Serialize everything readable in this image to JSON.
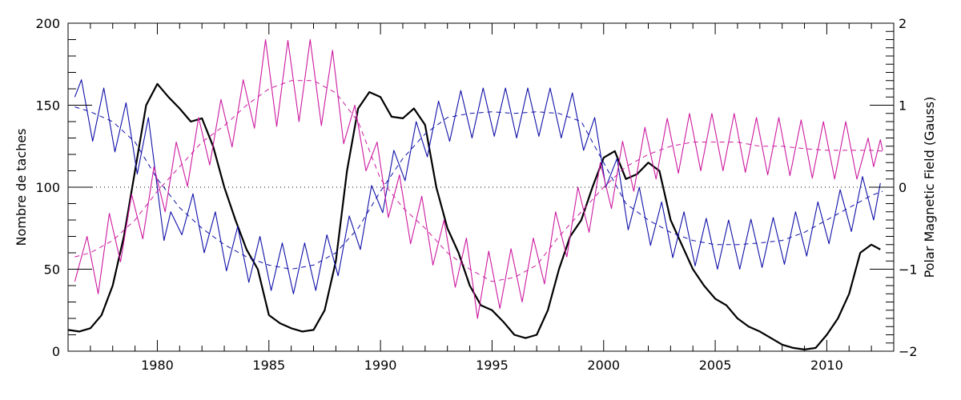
{
  "chart_data": {
    "type": "line",
    "xlabel": "",
    "ylabel_left": "Nombre de taches",
    "ylabel_right": "Polar Magnetic Field (Gauss)",
    "xlim": [
      1976,
      2013
    ],
    "ylim_left": [
      0,
      200
    ],
    "ylim_right": [
      -2,
      2
    ],
    "x_ticks": [
      1980,
      1985,
      1990,
      1995,
      2000,
      2005,
      2010
    ],
    "y_ticks_left": [
      0,
      50,
      100,
      150,
      200
    ],
    "y_ticks_right": [
      -2,
      -1,
      0,
      1,
      2
    ],
    "zero_line": {
      "axis": "right",
      "value": 0,
      "style": "dotted"
    },
    "grid": false,
    "colors": {
      "sunspots": "#000000",
      "field_a": "#1010a8",
      "field_b": "#cc1aa0"
    },
    "series": [
      {
        "axis": "left",
        "style": "solid-thick",
        "color_key": "sunspots",
        "x": [
          1976.0,
          1976.5,
          1977.0,
          1977.5,
          1978.0,
          1978.5,
          1979.0,
          1979.5,
          1980.0,
          1980.5,
          1981.0,
          1981.5,
          1982.0,
          1982.5,
          1983.0,
          1983.5,
          1984.0,
          1984.5,
          1985.0,
          1985.5,
          1986.0,
          1986.5,
          1987.0,
          1987.5,
          1988.0,
          1988.5,
          1989.0,
          1989.5,
          1990.0,
          1990.5,
          1991.0,
          1991.5,
          1992.0,
          1992.5,
          1993.0,
          1993.5,
          1994.0,
          1994.5,
          1995.0,
          1995.5,
          1996.0,
          1996.5,
          1997.0,
          1997.5,
          1998.0,
          1998.5,
          1999.0,
          1999.5,
          2000.0,
          2000.5,
          2001.0,
          2001.5,
          2002.0,
          2002.5,
          2003.0,
          2003.5,
          2004.0,
          2004.5,
          2005.0,
          2005.5,
          2006.0,
          2006.5,
          2007.0,
          2007.5,
          2008.0,
          2008.5,
          2009.0,
          2009.5,
          2010.0,
          2010.5,
          2011.0,
          2011.5,
          2012.0,
          2012.4
        ],
        "y": [
          13,
          12,
          14,
          22,
          40,
          70,
          110,
          150,
          163,
          155,
          148,
          140,
          142,
          125,
          100,
          80,
          62,
          50,
          22,
          17,
          14,
          12,
          13,
          25,
          55,
          110,
          148,
          158,
          155,
          143,
          142,
          148,
          138,
          100,
          75,
          60,
          40,
          28,
          25,
          18,
          10,
          8,
          10,
          25,
          50,
          70,
          80,
          100,
          118,
          122,
          105,
          108,
          115,
          110,
          80,
          65,
          50,
          40,
          32,
          28,
          20,
          15,
          12,
          8,
          4,
          2,
          1,
          2,
          10,
          20,
          35,
          60,
          65,
          62
        ]
      },
      {
        "axis": "right",
        "style": "solid-thin",
        "color_key": "field_a",
        "x": [
          1976.3,
          1976.6,
          1977.1,
          1977.6,
          1978.1,
          1978.6,
          1979.1,
          1979.6,
          1980.3,
          1980.6,
          1981.1,
          1981.6,
          1982.1,
          1982.6,
          1983.1,
          1983.6,
          1984.1,
          1984.6,
          1985.1,
          1985.6,
          1986.1,
          1986.6,
          1987.1,
          1987.6,
          1988.1,
          1988.6,
          1989.1,
          1989.6,
          1990.1,
          1990.6,
          1991.1,
          1991.6,
          1992.1,
          1992.6,
          1993.1,
          1993.6,
          1994.1,
          1994.6,
          1995.1,
          1995.6,
          1996.1,
          1996.6,
          1997.1,
          1997.6,
          1998.1,
          1998.6,
          1999.1,
          1999.6,
          2000.1,
          2000.6,
          2001.1,
          2001.6,
          2002.1,
          2002.6,
          2003.1,
          2003.6,
          2004.1,
          2004.6,
          2005.1,
          2005.6,
          2006.1,
          2006.6,
          2007.1,
          2007.6,
          2008.1,
          2008.6,
          2009.1,
          2009.6,
          2010.1,
          2010.6,
          2011.1,
          2011.6,
          2012.1,
          2012.4
        ],
        "y": [
          1.1,
          1.31,
          0.56,
          1.21,
          0.43,
          1.03,
          0.16,
          0.85,
          -0.65,
          -0.3,
          -0.58,
          -0.08,
          -0.8,
          -0.3,
          -1.02,
          -0.48,
          -1.16,
          -0.6,
          -1.26,
          -0.68,
          -1.3,
          -0.68,
          -1.26,
          -0.58,
          -1.08,
          -0.35,
          -0.76,
          0.02,
          -0.31,
          0.45,
          0.08,
          0.8,
          0.37,
          1.05,
          0.56,
          1.18,
          0.6,
          1.21,
          0.62,
          1.21,
          0.6,
          1.21,
          0.62,
          1.21,
          0.6,
          1.15,
          0.45,
          0.85,
          0.0,
          0.35,
          -0.52,
          0.0,
          -0.71,
          -0.18,
          -0.86,
          -0.3,
          -0.96,
          -0.38,
          -1.0,
          -0.4,
          -1.0,
          -0.39,
          -0.98,
          -0.37,
          -0.94,
          -0.3,
          -0.84,
          -0.18,
          -0.69,
          -0.03,
          -0.54,
          0.13,
          -0.4,
          0.05
        ]
      },
      {
        "axis": "right",
        "style": "dashed",
        "color_key": "field_a",
        "x": [
          1976.3,
          1977,
          1978,
          1979,
          1980,
          1981,
          1982,
          1983,
          1984,
          1985,
          1986,
          1987,
          1988,
          1989,
          1990,
          1991,
          1992,
          1993,
          1994,
          1995,
          1996,
          1997,
          1998,
          1999,
          2000,
          2001,
          2002,
          2003,
          2004,
          2005,
          2006,
          2007,
          2008,
          2009,
          2010,
          2011,
          2012,
          2012.5
        ],
        "y": [
          0.98,
          0.92,
          0.8,
          0.55,
          0.1,
          -0.25,
          -0.5,
          -0.7,
          -0.85,
          -0.95,
          -1.0,
          -0.95,
          -0.8,
          -0.5,
          -0.05,
          0.35,
          0.65,
          0.85,
          0.9,
          0.92,
          0.9,
          0.92,
          0.9,
          0.8,
          0.3,
          -0.2,
          -0.4,
          -0.55,
          -0.65,
          -0.7,
          -0.7,
          -0.68,
          -0.65,
          -0.55,
          -0.4,
          -0.25,
          -0.1,
          -0.05
        ]
      },
      {
        "axis": "right",
        "style": "solid-thin",
        "color_key": "field_b",
        "x": [
          1976.3,
          1976.85,
          1977.35,
          1977.85,
          1978.35,
          1978.85,
          1979.35,
          1979.85,
          1980.35,
          1980.85,
          1981.35,
          1981.85,
          1982.35,
          1982.85,
          1983.35,
          1983.85,
          1984.35,
          1984.85,
          1985.35,
          1985.85,
          1986.35,
          1986.85,
          1987.35,
          1987.85,
          1988.35,
          1988.85,
          1989.35,
          1989.85,
          1990.35,
          1990.85,
          1991.35,
          1991.85,
          1992.35,
          1992.85,
          1993.35,
          1993.85,
          1994.35,
          1994.85,
          1995.35,
          1995.85,
          1996.35,
          1996.85,
          1997.35,
          1997.85,
          1998.35,
          1998.85,
          1999.35,
          1999.85,
          2000.35,
          2000.85,
          2001.35,
          2001.85,
          2002.35,
          2002.85,
          2003.35,
          2003.85,
          2004.35,
          2004.85,
          2005.35,
          2005.85,
          2006.35,
          2006.85,
          2007.35,
          2007.85,
          2008.35,
          2008.85,
          2009.35,
          2009.85,
          2010.35,
          2010.85,
          2011.35,
          2011.85,
          2012.1,
          2012.4,
          2012.5
        ],
        "y": [
          -1.15,
          -0.6,
          -1.3,
          -0.32,
          -0.91,
          -0.09,
          -0.63,
          0.25,
          -0.3,
          0.55,
          0.01,
          0.85,
          0.27,
          1.07,
          0.49,
          1.31,
          0.72,
          1.8,
          0.74,
          1.79,
          0.8,
          1.8,
          0.75,
          1.67,
          0.53,
          1.0,
          0.2,
          0.55,
          -0.37,
          0.15,
          -0.69,
          -0.11,
          -0.95,
          -0.4,
          -1.22,
          -0.62,
          -1.6,
          -0.78,
          -1.48,
          -0.75,
          -1.4,
          -0.62,
          -1.18,
          -0.3,
          -0.85,
          0.0,
          -0.55,
          0.3,
          -0.26,
          0.56,
          -0.05,
          0.73,
          0.1,
          0.84,
          0.17,
          0.9,
          0.2,
          0.9,
          0.2,
          0.9,
          0.18,
          0.85,
          0.15,
          0.85,
          0.14,
          0.82,
          0.11,
          0.8,
          0.1,
          0.8,
          0.1,
          0.6,
          0.25,
          0.58,
          0.45
        ]
      },
      {
        "axis": "right",
        "style": "dashed",
        "color_key": "field_b",
        "x": [
          1976.3,
          1977,
          1978,
          1979,
          1980,
          1981,
          1982,
          1983,
          1984,
          1985,
          1986,
          1987,
          1988,
          1989,
          1990,
          1991,
          1992,
          1993,
          1994,
          1995,
          1996,
          1997,
          1998,
          1999,
          2000,
          2001,
          2002,
          2003,
          2004,
          2005,
          2006,
          2007,
          2008,
          2009,
          2010,
          2011,
          2012,
          2012.5
        ],
        "y": [
          -0.85,
          -0.8,
          -0.65,
          -0.4,
          -0.05,
          0.25,
          0.55,
          0.75,
          1.0,
          1.2,
          1.3,
          1.3,
          1.15,
          0.8,
          0.1,
          -0.25,
          -0.5,
          -0.8,
          -1.0,
          -1.15,
          -1.1,
          -0.95,
          -0.6,
          -0.3,
          0.0,
          0.25,
          0.4,
          0.5,
          0.55,
          0.55,
          0.55,
          0.5,
          0.5,
          0.47,
          0.45,
          0.45,
          0.45,
          0.44
        ]
      }
    ]
  }
}
